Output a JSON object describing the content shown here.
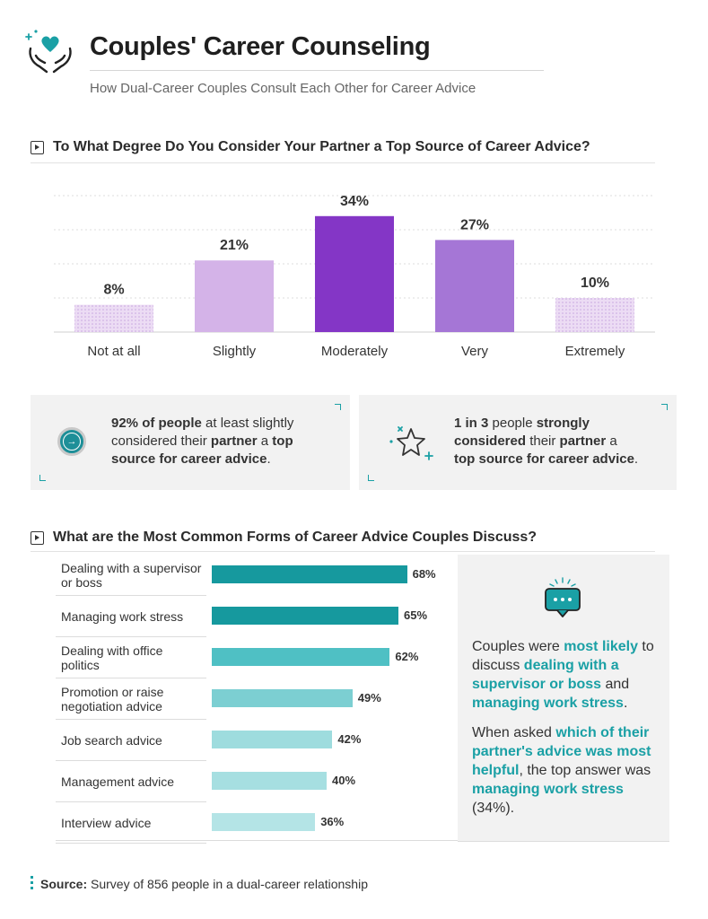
{
  "header": {
    "title": "Couples' Career Counseling",
    "subtitle": "How Dual-Career Couples Consult Each Other for Career Advice",
    "logo_icon": "hands-heart-icon"
  },
  "section1": {
    "title": "To What Degree Do You Consider Your Partner a Top Source of Career Advice?"
  },
  "section2": {
    "title": "What are the Most Common Forms of Career Advice Couples Discuss?"
  },
  "chart_data": [
    {
      "type": "bar",
      "title": "To What Degree Do You Consider Your Partner a Top Source of Career Advice?",
      "categories": [
        "Not at all",
        "Slightly",
        "Moderately",
        "Very",
        "Extremely"
      ],
      "values": [
        8,
        21,
        34,
        27,
        10
      ],
      "value_labels": [
        "8%",
        "21%",
        "34%",
        "27%",
        "10%"
      ],
      "unit": "%",
      "ylim": [
        0,
        40
      ],
      "grid": true,
      "colors": [
        "#e2cdee",
        "#d4b3e8",
        "#8436c6",
        "#a576d6",
        "#e2cdee"
      ]
    },
    {
      "type": "bar",
      "orientation": "horizontal",
      "title": "What are the Most Common Forms of Career Advice Couples Discuss?",
      "categories": [
        "Dealing with a supervisor or boss",
        "Managing work stress",
        "Dealing with office politics",
        "Promotion or raise negotiation advice",
        "Job search advice",
        "Management advice",
        "Interview advice"
      ],
      "values": [
        68,
        65,
        62,
        49,
        42,
        40,
        36
      ],
      "value_labels": [
        "68%",
        "65%",
        "62%",
        "49%",
        "42%",
        "40%",
        "36%"
      ],
      "unit": "%",
      "xlim": [
        0,
        100
      ],
      "colors": [
        "#16999e",
        "#16999e",
        "#4fc0c4",
        "#7ccfd2",
        "#9edcde",
        "#a6dfe1",
        "#b4e4e6"
      ]
    }
  ],
  "callouts": [
    {
      "icon": "arrow-right-circle-icon",
      "line1_bold": "92% of people",
      "line1_rest": " at least slightly",
      "line2_pre": "considered their ",
      "line2_bold1": "partner",
      "line2_mid": " a ",
      "line2_bold2": "top",
      "line3_bold": "source for career advice",
      "line3_end": "."
    },
    {
      "icon": "star-sparkle-icon",
      "line1_bold1": "1 in 3",
      "line1_mid": " people ",
      "line1_bold2": "strongly",
      "line2_bold": "considered",
      "line2_mid": " their ",
      "line2_bold2": "partner",
      "line2_end": " a",
      "line3_bold": "top source for career advice",
      "line3_end": "."
    }
  ],
  "panel": {
    "icon": "chat-bubble-icon",
    "p1_a": "Couples were ",
    "p1_b": "most likely",
    "p1_c": " to discuss ",
    "p1_d": "dealing with a supervisor or boss",
    "p1_e": " and ",
    "p1_f": "managing work stress",
    "p1_g": ".",
    "p2_a": "When asked ",
    "p2_b": "which of their partner's advice was most helpful",
    "p2_c": ", the top answer was ",
    "p2_d": "managing work stress",
    "p2_e": " (34%)."
  },
  "source": {
    "label": "Source:",
    "text": " Survey of 856 people in a dual-career relationship"
  }
}
